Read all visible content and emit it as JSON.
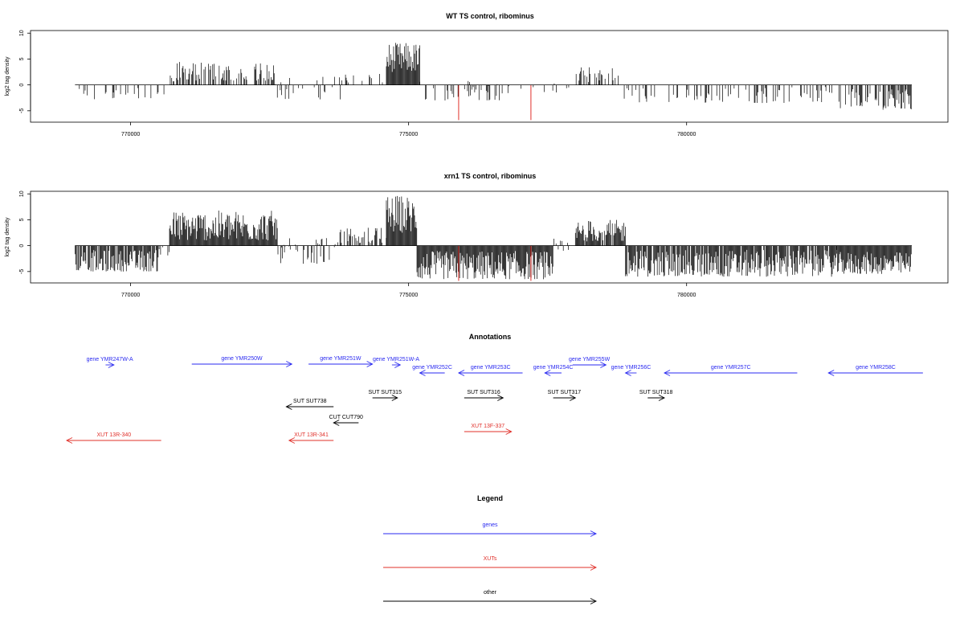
{
  "chart_data": [
    {
      "type": "bar",
      "title": "WT TS control, ribominus",
      "ylabel": "log2 tag density",
      "xlim": [
        768200,
        784700
      ],
      "ylim": [
        -7.2,
        10.5
      ],
      "xticks": [
        770000,
        775000,
        780000
      ],
      "xtick_labels": [
        "770000",
        "775000",
        "780000"
      ],
      "yticks": [
        -5,
        0,
        5,
        10
      ],
      "ytick_labels": [
        "-5",
        "0",
        "5",
        "10"
      ],
      "x_range": [
        769000,
        784050
      ],
      "highlight_lines": [
        {
          "x": 775900,
          "value": -6.8,
          "color": "#e0302a"
        },
        {
          "x": 777200,
          "value": -6.8,
          "color": "#e0302a"
        }
      ],
      "segments": [
        {
          "from": 769000,
          "to": 770700,
          "min": -3,
          "max": -0.4,
          "density": 0.22
        },
        {
          "from": 770700,
          "to": 770800,
          "min": 0.6,
          "max": 2.0,
          "density": 0.3
        },
        {
          "from": 770800,
          "to": 772600,
          "min": 0.8,
          "max": 4.5,
          "density": 0.55
        },
        {
          "from": 772600,
          "to": 773800,
          "min": -2.8,
          "max": 1.8,
          "density": 0.25
        },
        {
          "from": 773800,
          "to": 774600,
          "min": 0.3,
          "max": 2.4,
          "density": 0.18
        },
        {
          "from": 774600,
          "to": 775200,
          "min": 2.5,
          "max": 8.2,
          "density": 1.0
        },
        {
          "from": 775200,
          "to": 776800,
          "min": -3.0,
          "max": 1.2,
          "density": 0.25
        },
        {
          "from": 776800,
          "to": 778000,
          "min": -1.5,
          "max": 0.6,
          "density": 0.1
        },
        {
          "from": 778000,
          "to": 778800,
          "min": 0.5,
          "max": 3.5,
          "density": 0.45
        },
        {
          "from": 778800,
          "to": 782700,
          "min": -3.5,
          "max": -0.4,
          "density": 0.2
        },
        {
          "from": 782700,
          "to": 784050,
          "min": -4.8,
          "max": -0.8,
          "density": 0.5
        }
      ]
    },
    {
      "type": "bar",
      "title": "xrn1 TS control, ribominus",
      "ylabel": "log2 tag density",
      "xlim": [
        768200,
        784700
      ],
      "ylim": [
        -7.2,
        10.5
      ],
      "xticks": [
        770000,
        775000,
        780000
      ],
      "xtick_labels": [
        "770000",
        "775000",
        "780000"
      ],
      "yticks": [
        -5,
        0,
        5,
        10
      ],
      "ytick_labels": [
        "-5",
        "0",
        "5",
        "10"
      ],
      "x_range": [
        769000,
        784050
      ],
      "highlight_lines": [
        {
          "x": 775900,
          "value": -6.8,
          "color": "#e0302a"
        },
        {
          "x": 777200,
          "value": -6.8,
          "color": "#e0302a"
        }
      ],
      "segments": [
        {
          "from": 769000,
          "to": 770500,
          "min": -5.0,
          "max": -0.8,
          "density": 0.85
        },
        {
          "from": 770500,
          "to": 770700,
          "min": -2.0,
          "max": 1.0,
          "density": 0.3
        },
        {
          "from": 770700,
          "to": 772650,
          "min": 1.0,
          "max": 6.8,
          "density": 1.0
        },
        {
          "from": 772650,
          "to": 773700,
          "min": -3.5,
          "max": 2.5,
          "density": 0.45
        },
        {
          "from": 773700,
          "to": 774600,
          "min": 0.5,
          "max": 3.5,
          "density": 0.5
        },
        {
          "from": 774600,
          "to": 775150,
          "min": 2.5,
          "max": 9.8,
          "density": 1.0
        },
        {
          "from": 775150,
          "to": 777600,
          "min": -6.5,
          "max": -1.0,
          "density": 1.0
        },
        {
          "from": 777600,
          "to": 778000,
          "min": -2.0,
          "max": 1.5,
          "density": 0.4
        },
        {
          "from": 778000,
          "to": 778900,
          "min": 0.8,
          "max": 5.0,
          "density": 0.85
        },
        {
          "from": 778900,
          "to": 782700,
          "min": -6.0,
          "max": -0.8,
          "density": 0.9
        },
        {
          "from": 782700,
          "to": 784050,
          "min": -5.5,
          "max": -1.2,
          "density": 1.0
        }
      ]
    }
  ],
  "annotations": {
    "title": "Annotations",
    "items": [
      {
        "label": "gene YMR247W-A",
        "from": 769550,
        "to": 769700,
        "color": "#2a2af0",
        "row": "g1",
        "dir": "right"
      },
      {
        "label": "gene YMR250W",
        "from": 771100,
        "to": 772900,
        "color": "#2a2af0",
        "row": "g2",
        "dir": "right"
      },
      {
        "label": "gene YMR251W",
        "from": 773200,
        "to": 774350,
        "color": "#2a2af0",
        "row": "g2",
        "dir": "right"
      },
      {
        "label": "gene YMR251W-A",
        "from": 774700,
        "to": 774850,
        "color": "#2a2af0",
        "row": "g1",
        "dir": "right"
      },
      {
        "label": "gene YMR252C",
        "from": 775200,
        "to": 775650,
        "color": "#2a2af0",
        "row": "g3",
        "dir": "left"
      },
      {
        "label": "gene YMR253C",
        "from": 775900,
        "to": 777050,
        "color": "#2a2af0",
        "row": "g3",
        "dir": "left"
      },
      {
        "label": "gene YMR254C",
        "from": 777450,
        "to": 777750,
        "color": "#2a2af0",
        "row": "g3",
        "dir": "left"
      },
      {
        "label": "gene YMR255W",
        "from": 777950,
        "to": 778550,
        "color": "#2a2af0",
        "row": "g1",
        "dir": "right"
      },
      {
        "label": "gene YMR256C",
        "from": 778900,
        "to": 779100,
        "color": "#2a2af0",
        "row": "g3",
        "dir": "left"
      },
      {
        "label": "gene YMR257C",
        "from": 779600,
        "to": 781990,
        "color": "#2a2af0",
        "row": "g3",
        "dir": "left"
      },
      {
        "label": "gene YMR258C",
        "from": 782550,
        "to": 784250,
        "color": "#2a2af0",
        "row": "g3",
        "dir": "left"
      },
      {
        "label": "SUT SUT315",
        "from": 774350,
        "to": 774800,
        "color": "#000000",
        "row": "s1",
        "dir": "right"
      },
      {
        "label": "SUT SUT316",
        "from": 776000,
        "to": 776700,
        "color": "#000000",
        "row": "s1",
        "dir": "right"
      },
      {
        "label": "SUT SUT317",
        "from": 777600,
        "to": 778000,
        "color": "#000000",
        "row": "s1",
        "dir": "right"
      },
      {
        "label": "SUT SUT318",
        "from": 779300,
        "to": 779600,
        "color": "#000000",
        "row": "s1",
        "dir": "right"
      },
      {
        "label": "SUT SUT738",
        "from": 772800,
        "to": 773650,
        "color": "#000000",
        "row": "s2",
        "dir": "left"
      },
      {
        "label": "CUT CUT790",
        "from": 773650,
        "to": 774100,
        "color": "#000000",
        "row": "c1",
        "dir": "left"
      },
      {
        "label": "XUT 13F-337",
        "from": 776000,
        "to": 776850,
        "color": "#e0302a",
        "row": "x1",
        "dir": "right"
      },
      {
        "label": "XUT 13R-340",
        "from": 768850,
        "to": 770550,
        "color": "#e0302a",
        "row": "x2",
        "dir": "left"
      },
      {
        "label": "XUT 13R-341",
        "from": 772850,
        "to": 773650,
        "color": "#e0302a",
        "row": "x2",
        "dir": "left"
      }
    ]
  },
  "legend": {
    "title": "Legend",
    "items": [
      {
        "label": "genes",
        "color": "#2a2af0"
      },
      {
        "label": "XUTs",
        "color": "#e0302a"
      },
      {
        "label": "other",
        "color": "#000000"
      }
    ]
  }
}
